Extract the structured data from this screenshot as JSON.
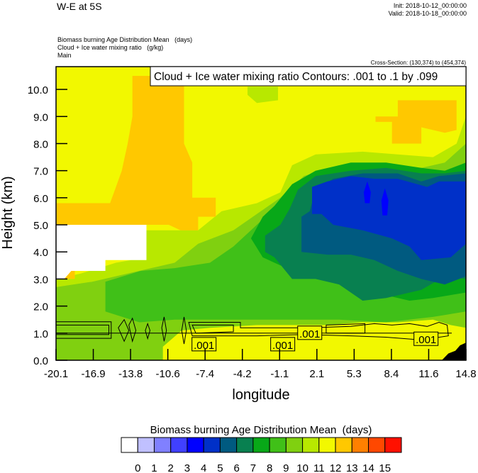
{
  "header": {
    "title": "W-E at 5S",
    "init": "Init: 2018-10-12_00:00:00",
    "valid": "Valid: 2018-10-18_00:00:00",
    "fields": [
      "Biomass burning Age Distribution Mean   (days)",
      "Cloud + Ice water mixing ratio   (g/kg)",
      "Main"
    ],
    "cross_section": "Cross-Section: (130,374) to (454,374)"
  },
  "chart_data": {
    "type": "contour",
    "title": "Cloud + Ice water mixing ratio Contours: .001 to .1 by .099",
    "xlabel": "longitude",
    "ylabel": "Height (km)",
    "xlim": [
      -20.1,
      14.8
    ],
    "ylim": [
      0,
      10.84
    ],
    "xticks": [
      "-20.1",
      "-16.9",
      "-13.8",
      "-10.6",
      "-7.4",
      "-4.2",
      "-1.1",
      "2.1",
      "5.3",
      "8.4",
      "11.6",
      "14.8"
    ],
    "yticks": [
      "0.0",
      "1.0",
      "2.0",
      "3.0",
      "4.0",
      "5.0",
      "6.0",
      "7.0",
      "8.0",
      "9.0",
      "10.0"
    ],
    "colorbar": {
      "title": "Biomass burning Age Distribution Mean  (days)",
      "labels": [
        "0",
        "1",
        "2",
        "3",
        "4",
        "5",
        "6",
        "7",
        "8",
        "9",
        "10",
        "11",
        "12",
        "13",
        "14",
        "15"
      ],
      "colors": [
        "#ffffff",
        "#c0c0ff",
        "#8080ff",
        "#4040ff",
        "#0000ff",
        "#0030c8",
        "#005a80",
        "#088050",
        "#08a818",
        "#40c018",
        "#80d010",
        "#b8e800",
        "#f2f800",
        "#ffc800",
        "#ff8000",
        "#ff4800",
        "#ff1000"
      ]
    },
    "background_level": 12,
    "filled_regions": [
      {
        "level": 11,
        "points": [
          [
            -20.1,
            3.0
          ],
          [
            -18,
            3.2
          ],
          [
            -15,
            3.6
          ],
          [
            -12.4,
            3.8
          ],
          [
            -12.4,
            4.8
          ],
          [
            -8,
            4.8
          ],
          [
            -6,
            5.5
          ],
          [
            -3,
            5.8
          ],
          [
            -1,
            6.2
          ],
          [
            0,
            7.2
          ],
          [
            2,
            7.6
          ],
          [
            6,
            7.7
          ],
          [
            9,
            7.6
          ],
          [
            12,
            7.5
          ],
          [
            14,
            8.0
          ],
          [
            14.8,
            9.0
          ],
          [
            14.8,
            0
          ],
          [
            -20.1,
            0
          ]
        ]
      },
      {
        "level": 11,
        "points": [
          [
            -2.5,
            10.84
          ],
          [
            1.5,
            10.84
          ],
          [
            1.2,
            10.3
          ],
          [
            -0.5,
            10.2
          ],
          [
            -2.2,
            10.4
          ]
        ]
      },
      {
        "level": 11,
        "points": [
          [
            -3.8,
            10.1
          ],
          [
            -1.2,
            10.1
          ],
          [
            -1.2,
            9.6
          ],
          [
            -3.0,
            9.5
          ],
          [
            -3.8,
            9.8
          ]
        ]
      },
      {
        "level": 13,
        "points": [
          [
            -13.6,
            10.5
          ],
          [
            -9.2,
            10.5
          ],
          [
            -9.2,
            8.0
          ],
          [
            -8.5,
            7.3
          ],
          [
            -8.5,
            6.0
          ],
          [
            -6.5,
            6.0
          ],
          [
            -6.5,
            5.3
          ],
          [
            -8.0,
            5.3
          ],
          [
            -8.0,
            4.8
          ],
          [
            -9.5,
            4.8
          ],
          [
            -10.5,
            5.0
          ],
          [
            -20.1,
            5.0
          ],
          [
            -20.1,
            5.8
          ],
          [
            -15.5,
            5.8
          ],
          [
            -15.0,
            6.4
          ],
          [
            -14.5,
            7.0
          ],
          [
            -14.0,
            8.0
          ],
          [
            -13.6,
            9.0
          ]
        ]
      },
      {
        "level": 13,
        "points": [
          [
            7.1,
            9.0
          ],
          [
            9.0,
            9.0
          ],
          [
            9.0,
            9.6
          ],
          [
            14.0,
            9.6
          ],
          [
            14.0,
            8.5
          ],
          [
            13.0,
            8.4
          ],
          [
            11.0,
            8.6
          ],
          [
            11.0,
            8.0
          ],
          [
            8.5,
            8.0
          ],
          [
            8.5,
            8.8
          ],
          [
            7.1,
            8.8
          ]
        ]
      },
      {
        "level": 13,
        "points": [
          [
            -20.1,
            3.7
          ],
          [
            -18.5,
            3.7
          ],
          [
            -18.5,
            3.0
          ],
          [
            -20.1,
            3.0
          ]
        ]
      },
      {
        "level": 0,
        "points": [
          [
            -20.1,
            5.0
          ],
          [
            -12.4,
            5.0
          ],
          [
            -12.4,
            3.7
          ],
          [
            -15.9,
            3.7
          ],
          [
            -15.9,
            3.3
          ],
          [
            -18.8,
            3.3
          ],
          [
            -19.4,
            3.0
          ],
          [
            -20.1,
            3.0
          ]
        ]
      },
      {
        "level": 10,
        "points": [
          [
            -20.1,
            2.7
          ],
          [
            -17,
            2.9
          ],
          [
            -14,
            3.2
          ],
          [
            -12,
            3.4
          ],
          [
            -10,
            3.6
          ],
          [
            -8,
            4.3
          ],
          [
            -5,
            4.8
          ],
          [
            -3,
            5.4
          ],
          [
            -1,
            6.0
          ],
          [
            1,
            6.8
          ],
          [
            4,
            7.2
          ],
          [
            8,
            7.2
          ],
          [
            11,
            7.1
          ],
          [
            13,
            7.3
          ],
          [
            14.8,
            8.0
          ],
          [
            14.8,
            0
          ],
          [
            -20.1,
            0
          ]
        ]
      },
      {
        "level": 9,
        "points": [
          [
            -15.9,
            2.9
          ],
          [
            -12.9,
            3.3
          ],
          [
            -10,
            3.4
          ],
          [
            -7,
            3.6
          ],
          [
            -5,
            4.2
          ],
          [
            -3,
            5.0
          ],
          [
            -1,
            5.8
          ],
          [
            1,
            6.4
          ],
          [
            3,
            6.7
          ],
          [
            6,
            7.0
          ],
          [
            10,
            6.9
          ],
          [
            12,
            6.8
          ],
          [
            14,
            7.0
          ],
          [
            14.8,
            7.3
          ],
          [
            14.8,
            1.8
          ],
          [
            12,
            1.6
          ],
          [
            8,
            1.4
          ],
          [
            4,
            1.5
          ],
          [
            0,
            1.5
          ],
          [
            -5,
            1.5
          ],
          [
            -10,
            1.5
          ],
          [
            -13,
            1.4
          ],
          [
            -15.9,
            1.8
          ]
        ]
      },
      {
        "level": 8,
        "points": [
          [
            -3.5,
            4.5
          ],
          [
            -2.5,
            5.3
          ],
          [
            -1.5,
            5.7
          ],
          [
            0,
            6.5
          ],
          [
            2,
            7.0
          ],
          [
            5,
            7.3
          ],
          [
            8,
            7.3
          ],
          [
            11,
            7.1
          ],
          [
            13,
            7.0
          ],
          [
            14.8,
            7.3
          ],
          [
            14.8,
            2.5
          ],
          [
            12,
            2.3
          ],
          [
            10,
            2.2
          ],
          [
            7,
            2.5
          ],
          [
            4,
            2.8
          ],
          [
            1,
            3.2
          ],
          [
            -1,
            3.5
          ],
          [
            -2.5,
            3.8
          ]
        ]
      },
      {
        "level": 7,
        "points": [
          [
            -2.3,
            4.0
          ],
          [
            -2.3,
            4.6
          ],
          [
            -1,
            5.0
          ],
          [
            -0.2,
            5.6
          ],
          [
            0.5,
            6.3
          ],
          [
            2,
            6.8
          ],
          [
            5,
            7.0
          ],
          [
            8,
            7.1
          ],
          [
            11,
            6.9
          ],
          [
            13,
            6.9
          ],
          [
            14.8,
            7.0
          ],
          [
            14.8,
            3.0
          ],
          [
            13,
            3.1
          ],
          [
            11,
            2.6
          ],
          [
            8,
            2.3
          ],
          [
            6,
            2.2
          ],
          [
            4,
            2.8
          ],
          [
            2,
            3.0
          ],
          [
            0,
            3.0
          ],
          [
            -1.5,
            3.8
          ]
        ]
      },
      {
        "level": 6,
        "points": [
          [
            0.8,
            4.0
          ],
          [
            0.8,
            5.3
          ],
          [
            1.5,
            5.5
          ],
          [
            2,
            6.3
          ],
          [
            3.5,
            6.7
          ],
          [
            6,
            6.9
          ],
          [
            9,
            6.9
          ],
          [
            11,
            6.6
          ],
          [
            12.5,
            6.8
          ],
          [
            14.8,
            6.9
          ],
          [
            14.8,
            3.1
          ],
          [
            13,
            2.8
          ],
          [
            11,
            3.0
          ],
          [
            9,
            3.3
          ],
          [
            7,
            3.7
          ],
          [
            5,
            3.9
          ],
          [
            3,
            3.9
          ]
        ]
      },
      {
        "level": 5,
        "points": [
          [
            1.7,
            5.4
          ],
          [
            1.7,
            6.4
          ],
          [
            3,
            6.6
          ],
          [
            5,
            6.8
          ],
          [
            7,
            6.7
          ],
          [
            9,
            6.7
          ],
          [
            11.5,
            6.4
          ],
          [
            12.5,
            6.6
          ],
          [
            14.8,
            6.6
          ],
          [
            14.8,
            4.3
          ],
          [
            13.5,
            3.8
          ],
          [
            11,
            3.7
          ],
          [
            10,
            4.2
          ],
          [
            8.5,
            4.5
          ],
          [
            6,
            4.8
          ],
          [
            3.5,
            5.0
          ],
          [
            2.5,
            5.4
          ]
        ]
      },
      {
        "level": 4,
        "points": [
          [
            6.1,
            6.2
          ],
          [
            6.4,
            6.6
          ],
          [
            6.7,
            6.2
          ],
          [
            6.6,
            5.8
          ],
          [
            6.2,
            5.8
          ]
        ]
      },
      {
        "level": 4,
        "points": [
          [
            7.6,
            5.9
          ],
          [
            7.9,
            6.35
          ],
          [
            8.2,
            5.9
          ],
          [
            8.1,
            5.35
          ],
          [
            7.7,
            5.35
          ]
        ]
      },
      {
        "level": 12,
        "points": [
          [
            -11,
            0
          ],
          [
            -11,
            0.5
          ],
          [
            -9.4,
            1.1
          ],
          [
            -7,
            1.2
          ],
          [
            -3,
            1.3
          ],
          [
            0,
            1.3
          ],
          [
            3,
            1.3
          ],
          [
            6,
            1.4
          ],
          [
            9,
            1.4
          ],
          [
            12,
            1.5
          ],
          [
            13.5,
            1.3
          ],
          [
            14.8,
            1.2
          ],
          [
            14.8,
            0
          ]
        ]
      }
    ],
    "terrain": [
      [
        12.75,
        0
      ],
      [
        13.3,
        0.25
      ],
      [
        13.9,
        0.35
      ],
      [
        14.3,
        0.55
      ],
      [
        14.8,
        0.65
      ],
      [
        14.8,
        0
      ]
    ],
    "contour_level": ".001",
    "contour_lines": [
      [
        [
          -20.1,
          1.42
        ],
        [
          -15.4,
          1.42
        ],
        [
          -15.4,
          0.81
        ],
        [
          -20.1,
          0.81
        ]
      ],
      [
        [
          -20.1,
          1.3
        ],
        [
          -15.6,
          1.3
        ],
        [
          -15.6,
          0.95
        ],
        [
          -20.1,
          0.95
        ]
      ],
      [
        [
          -14.8,
          1.2
        ],
        [
          -14.3,
          1.5
        ],
        [
          -13.9,
          1.1
        ],
        [
          -14.3,
          0.7
        ]
      ],
      [
        [
          -13.9,
          1.3
        ],
        [
          -13.6,
          1.55
        ],
        [
          -13.3,
          1.1
        ],
        [
          -13.6,
          0.7
        ]
      ],
      [
        [
          -12.5,
          1.1
        ],
        [
          -12.3,
          1.35
        ],
        [
          -12.1,
          1.1
        ],
        [
          -12.3,
          0.8
        ]
      ],
      [
        [
          -11.1,
          1.2
        ],
        [
          -10.9,
          1.6
        ],
        [
          -10.7,
          1.1
        ],
        [
          -10.9,
          0.7
        ]
      ],
      [
        [
          -9.4,
          1.1
        ],
        [
          -9.2,
          1.6
        ],
        [
          -9.0,
          1.1
        ],
        [
          -9.2,
          0.6
        ]
      ],
      [
        [
          -8.8,
          1.4
        ],
        [
          -4.4,
          1.4
        ],
        [
          -4.4,
          1.2
        ],
        [
          -1.0,
          1.2
        ],
        [
          1.5,
          1.2
        ],
        [
          5,
          1.25
        ],
        [
          7,
          1.35
        ],
        [
          8.5,
          1.3
        ],
        [
          10,
          1.35
        ],
        [
          11.5,
          1.25
        ],
        [
          12.5,
          1.4
        ],
        [
          13.2,
          1.3
        ],
        [
          13.3,
          0.9
        ],
        [
          11,
          0.75
        ],
        [
          8,
          0.85
        ],
        [
          5,
          0.9
        ],
        [
          1,
          0.95
        ],
        [
          -3,
          0.9
        ],
        [
          -6,
          0.9
        ],
        [
          -8.5,
          0.9
        ]
      ],
      [
        [
          -8.5,
          1.3
        ],
        [
          -5,
          1.3
        ],
        [
          -5,
          1.05
        ],
        [
          -8.2,
          1.0
        ]
      ],
      [
        [
          2.9,
          1.3
        ],
        [
          6.2,
          1.35
        ],
        [
          6.2,
          1.0
        ],
        [
          2.9,
          1.0
        ]
      ]
    ],
    "contour_labels": [
      [
        -7.5,
        0.58
      ],
      [
        -0.8,
        0.58
      ],
      [
        1.5,
        1.0
      ],
      [
        11.4,
        0.78
      ]
    ]
  }
}
